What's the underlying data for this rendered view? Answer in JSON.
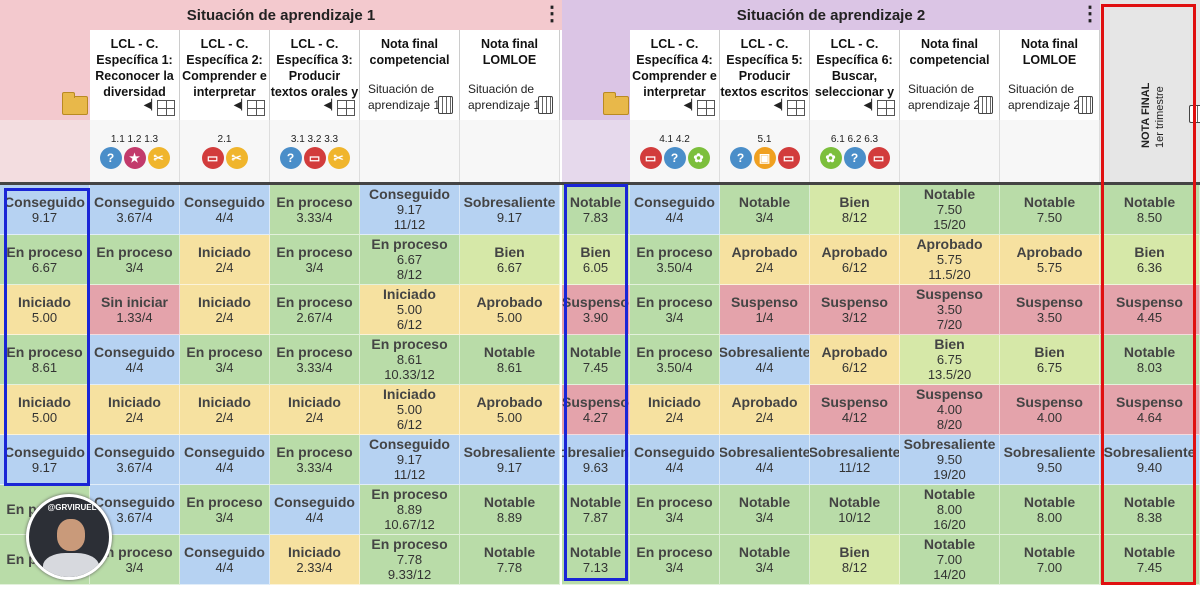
{
  "sections": [
    {
      "title": "Situación de aprendizaje 1"
    },
    {
      "title": "Situación de aprendizaje 2"
    }
  ],
  "columns": [
    {
      "lines": [
        "LCL - C.",
        "Específica 1:",
        "Reconocer la",
        "diversidad"
      ],
      "kind": "spec",
      "codes": "1.1  1.2  1.3",
      "icons": [
        {
          "name": "question-icon",
          "color": "#4a8ec9",
          "glyph": "?"
        },
        {
          "name": "star-icon",
          "color": "#c23a6b",
          "glyph": "★"
        },
        {
          "name": "scissors-icon",
          "color": "#f0b52c",
          "glyph": "✂"
        }
      ]
    },
    {
      "lines": [
        "LCL - C.",
        "Específica 2:",
        "Comprender e",
        "interpretar"
      ],
      "kind": "spec",
      "codes": "2.1",
      "icons": [
        {
          "name": "presentation-icon",
          "color": "#d23c3c",
          "glyph": "▭"
        },
        {
          "name": "scissors-icon",
          "color": "#f0b52c",
          "glyph": "✂"
        }
      ]
    },
    {
      "lines": [
        "LCL - C.",
        "Específica 3:",
        "Producir",
        "textos orales y"
      ],
      "kind": "spec",
      "codes": "3.1  3.2  3.3",
      "icons": [
        {
          "name": "question-icon",
          "color": "#4a8ec9",
          "glyph": "?"
        },
        {
          "name": "presentation-icon",
          "color": "#d23c3c",
          "glyph": "▭"
        },
        {
          "name": "scissors-icon",
          "color": "#f0b52c",
          "glyph": "✂"
        }
      ]
    },
    {
      "lines": [
        "Nota final",
        "competencial"
      ],
      "kind": "final",
      "sub": [
        "Situación de",
        "aprendizaje 1"
      ]
    },
    {
      "lines": [
        "Nota final",
        "LOMLOE"
      ],
      "kind": "final",
      "sub": [
        "Situación de",
        "aprendizaje 1"
      ]
    },
    {
      "lines": [
        "LCL - C.",
        "Específica 4:",
        "Comprender e",
        "interpretar"
      ],
      "kind": "spec",
      "codes": "4.1  4.2",
      "icons": [
        {
          "name": "presentation-icon",
          "color": "#d23c3c",
          "glyph": "▭"
        },
        {
          "name": "question-icon",
          "color": "#4a8ec9",
          "glyph": "?"
        },
        {
          "name": "award-icon",
          "color": "#7cbf3c",
          "glyph": "✿"
        }
      ]
    },
    {
      "lines": [
        "LCL - C.",
        "Específica 5:",
        "Producir",
        "textos escritos"
      ],
      "kind": "spec",
      "codes": "5.1",
      "icons": [
        {
          "name": "question-icon",
          "color": "#4a8ec9",
          "glyph": "?"
        },
        {
          "name": "board-icon",
          "color": "#f0a020",
          "glyph": "▣"
        },
        {
          "name": "presentation-icon",
          "color": "#d23c3c",
          "glyph": "▭"
        }
      ]
    },
    {
      "lines": [
        "LCL - C.",
        "Específica 6:",
        "Buscar,",
        "seleccionar y"
      ],
      "kind": "spec",
      "codes": "6.1  6.2  6.3",
      "icons": [
        {
          "name": "award-icon",
          "color": "#7cbf3c",
          "glyph": "✿"
        },
        {
          "name": "question-icon",
          "color": "#4a8ec9",
          "glyph": "?"
        },
        {
          "name": "presentation-icon",
          "color": "#d23c3c",
          "glyph": "▭"
        }
      ]
    },
    {
      "lines": [
        "Nota final",
        "competencial"
      ],
      "kind": "final",
      "sub": [
        "Situación de",
        "aprendizaje 2"
      ]
    },
    {
      "lines": [
        "Nota final",
        "LOMLOE"
      ],
      "kind": "final",
      "sub": [
        "Situación de",
        "aprendizaje 2"
      ]
    }
  ],
  "trimester_header": {
    "title": "NOTA FINAL",
    "sub": "1er trimestre"
  },
  "watermark": "@GRVIRUEL",
  "colors": {
    "green": "#b9dca8",
    "blue": "#b6d2f2",
    "yellow": "#f6e1a0",
    "red": "#e4a3ab",
    "lime": "#d6e8a8",
    "purple": "#dbc5e5",
    "pink": "#f3c9ce"
  },
  "rows": [
    {
      "sa1": [
        [
          "Conseguido",
          "9.17"
        ]
      ],
      "cells": [
        [
          "Conseguido",
          "3.67/4"
        ],
        [
          "Conseguido",
          "4/4"
        ],
        [
          "En proceso",
          "3.33/4"
        ],
        [
          "Conseguido",
          "9.17",
          "11/12"
        ],
        [
          "Sobresaliente",
          "9.17"
        ]
      ],
      "sa2": [
        [
          "Notable",
          "7.83"
        ]
      ],
      "cells2": [
        [
          "Conseguido",
          "4/4"
        ],
        [
          "Notable",
          "3/4"
        ],
        [
          "Bien",
          "8/12"
        ],
        [
          "Notable",
          "7.50",
          "15/20"
        ],
        [
          "Notable",
          "7.50"
        ]
      ],
      "final": [
        [
          "Notable",
          "8.50"
        ]
      ]
    },
    {
      "sa1": [
        [
          "En proceso",
          "6.67"
        ]
      ],
      "cells": [
        [
          "En proceso",
          "3/4"
        ],
        [
          "Iniciado",
          "2/4"
        ],
        [
          "En proceso",
          "3/4"
        ],
        [
          "En proceso",
          "6.67",
          "8/12"
        ],
        [
          "Bien",
          "6.67"
        ]
      ],
      "sa2": [
        [
          "Bien",
          "6.05"
        ]
      ],
      "cells2": [
        [
          "En proceso",
          "3.50/4"
        ],
        [
          "Aprobado",
          "2/4"
        ],
        [
          "Aprobado",
          "6/12"
        ],
        [
          "Aprobado",
          "5.75",
          "11.5/20"
        ],
        [
          "Aprobado",
          "5.75"
        ]
      ],
      "final": [
        [
          "Bien",
          "6.36"
        ]
      ]
    },
    {
      "sa1": [
        [
          "Iniciado",
          "5.00"
        ]
      ],
      "cells": [
        [
          "Sin iniciar",
          "1.33/4"
        ],
        [
          "Iniciado",
          "2/4"
        ],
        [
          "En proceso",
          "2.67/4"
        ],
        [
          "Iniciado",
          "5.00",
          "6/12"
        ],
        [
          "Aprobado",
          "5.00"
        ]
      ],
      "sa2": [
        [
          "Suspenso",
          "3.90"
        ]
      ],
      "cells2": [
        [
          "En proceso",
          "3/4"
        ],
        [
          "Suspenso",
          "1/4"
        ],
        [
          "Suspenso",
          "3/12"
        ],
        [
          "Suspenso",
          "3.50",
          "7/20"
        ],
        [
          "Suspenso",
          "3.50"
        ]
      ],
      "final": [
        [
          "Suspenso",
          "4.45"
        ]
      ]
    },
    {
      "sa1": [
        [
          "En proceso",
          "8.61"
        ]
      ],
      "cells": [
        [
          "Conseguido",
          "4/4"
        ],
        [
          "En proceso",
          "3/4"
        ],
        [
          "En proceso",
          "3.33/4"
        ],
        [
          "En proceso",
          "8.61",
          "10.33/12"
        ],
        [
          "Notable",
          "8.61"
        ]
      ],
      "sa2": [
        [
          "Notable",
          "7.45"
        ]
      ],
      "cells2": [
        [
          "En proceso",
          "3.50/4"
        ],
        [
          "Sobresaliente",
          "4/4"
        ],
        [
          "Aprobado",
          "6/12"
        ],
        [
          "Bien",
          "6.75",
          "13.5/20"
        ],
        [
          "Bien",
          "6.75"
        ]
      ],
      "final": [
        [
          "Notable",
          "8.03"
        ]
      ]
    },
    {
      "sa1": [
        [
          "Iniciado",
          "5.00"
        ]
      ],
      "cells": [
        [
          "Iniciado",
          "2/4"
        ],
        [
          "Iniciado",
          "2/4"
        ],
        [
          "Iniciado",
          "2/4"
        ],
        [
          "Iniciado",
          "5.00",
          "6/12"
        ],
        [
          "Aprobado",
          "5.00"
        ]
      ],
      "sa2": [
        [
          "Suspenso",
          "4.27"
        ]
      ],
      "cells2": [
        [
          "Iniciado",
          "2/4"
        ],
        [
          "Aprobado",
          "2/4"
        ],
        [
          "Suspenso",
          "4/12"
        ],
        [
          "Suspenso",
          "4.00",
          "8/20"
        ],
        [
          "Suspenso",
          "4.00"
        ]
      ],
      "final": [
        [
          "Suspenso",
          "4.64"
        ]
      ]
    },
    {
      "sa1": [
        [
          "Conseguido",
          "9.17"
        ]
      ],
      "cells": [
        [
          "Conseguido",
          "3.67/4"
        ],
        [
          "Conseguido",
          "4/4"
        ],
        [
          "En proceso",
          "3.33/4"
        ],
        [
          "Conseguido",
          "9.17",
          "11/12"
        ],
        [
          "Sobresaliente",
          "9.17"
        ]
      ],
      "sa2": [
        [
          "Sobresaliente",
          "9.63"
        ]
      ],
      "cells2": [
        [
          "Conseguido",
          "4/4"
        ],
        [
          "Sobresaliente",
          "4/4"
        ],
        [
          "Sobresaliente",
          "11/12"
        ],
        [
          "Sobresaliente",
          "9.50",
          "19/20"
        ],
        [
          "Sobresaliente",
          "9.50"
        ]
      ],
      "final": [
        [
          "Sobresaliente",
          "9.40"
        ]
      ]
    },
    {
      "sa1": [
        [
          "En proceso",
          ""
        ]
      ],
      "cells": [
        [
          "Conseguido",
          "3.67/4"
        ],
        [
          "En proceso",
          "3/4"
        ],
        [
          "Conseguido",
          "4/4"
        ],
        [
          "En proceso",
          "8.89",
          "10.67/12"
        ],
        [
          "Notable",
          "8.89"
        ]
      ],
      "sa2": [
        [
          "Notable",
          "7.87"
        ]
      ],
      "cells2": [
        [
          "En proceso",
          "3/4"
        ],
        [
          "Notable",
          "3/4"
        ],
        [
          "Notable",
          "10/12"
        ],
        [
          "Notable",
          "8.00",
          "16/20"
        ],
        [
          "Notable",
          "8.00"
        ]
      ],
      "final": [
        [
          "Notable",
          "8.38"
        ]
      ]
    },
    {
      "sa1": [
        [
          "En proceso",
          ""
        ]
      ],
      "cells": [
        [
          "En proceso",
          "3/4"
        ],
        [
          "Conseguido",
          "4/4"
        ],
        [
          "Iniciado",
          "2.33/4"
        ],
        [
          "En proceso",
          "7.78",
          "9.33/12"
        ],
        [
          "Notable",
          "7.78"
        ]
      ],
      "sa2": [
        [
          "Notable",
          "7.13"
        ]
      ],
      "cells2": [
        [
          "En proceso",
          "3/4"
        ],
        [
          "Notable",
          "3/4"
        ],
        [
          "Bien",
          "8/12"
        ],
        [
          "Notable",
          "7.00",
          "14/20"
        ],
        [
          "Notable",
          "7.00"
        ]
      ],
      "final": [
        [
          "Notable",
          "7.45"
        ]
      ]
    }
  ]
}
